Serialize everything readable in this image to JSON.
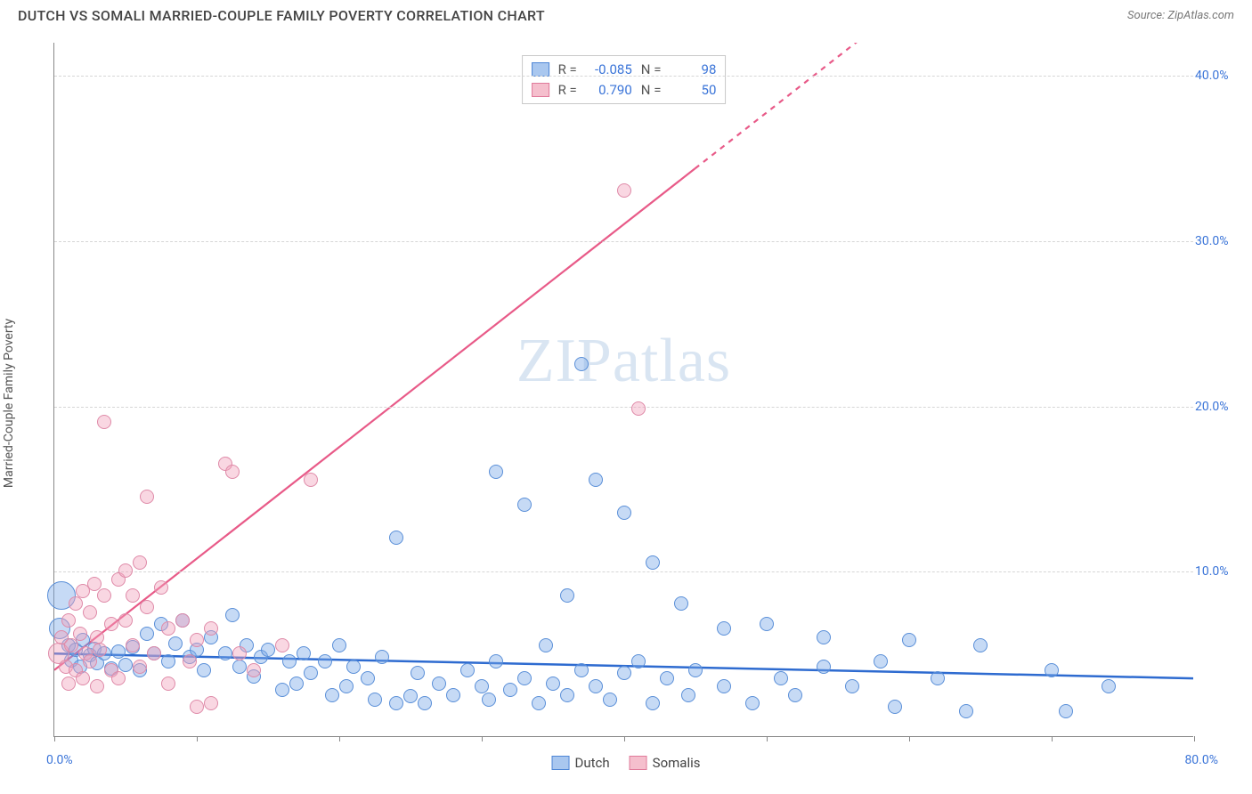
{
  "header": {
    "title": "DUTCH VS SOMALI MARRIED-COUPLE FAMILY POVERTY CORRELATION CHART",
    "source": "Source: ZipAtlas.com"
  },
  "watermark": {
    "a": "ZIP",
    "b": "atlas"
  },
  "chart": {
    "type": "scatter",
    "y_axis_label": "Married-Couple Family Poverty",
    "xlim": [
      0,
      80
    ],
    "ylim": [
      0,
      42
    ],
    "x_min_label": "0.0%",
    "x_max_label": "80.0%",
    "y_ticks": [
      10.0,
      20.0,
      30.0,
      40.0
    ],
    "y_tick_labels": [
      "10.0%",
      "20.0%",
      "30.0%",
      "40.0%"
    ],
    "x_tick_marks": [
      0,
      10,
      20,
      30,
      40,
      50,
      60,
      70,
      80
    ],
    "background_color": "#ffffff",
    "grid_color": "#d6d6d6",
    "axis_color": "#888888",
    "bottom_legend": [
      {
        "label": "Dutch",
        "fill": "#a9c7ef",
        "stroke": "#4e86d6"
      },
      {
        "label": "Somalis",
        "fill": "#f5bfcd",
        "stroke": "#e07a9a"
      }
    ],
    "stats": {
      "rows": [
        {
          "fill": "#a9c7ef",
          "stroke": "#4e86d6",
          "R": "-0.085",
          "N": "98"
        },
        {
          "fill": "#f5bfcd",
          "stroke": "#e07a9a",
          "R": "0.790",
          "N": "50"
        }
      ],
      "label_R": "R =",
      "label_N": "N ="
    },
    "series": [
      {
        "name": "Dutch",
        "point_fill": "rgba(120,168,230,0.42)",
        "point_stroke": "#5a8fd8",
        "default_radius": 8,
        "trend": {
          "color": "#2e6bd0",
          "width": 2.5,
          "dash_after_x": null,
          "y_at_x0": 5.0,
          "y_at_xmax": 3.5
        },
        "points": [
          {
            "x": 0.5,
            "y": 8.5,
            "r": 16
          },
          {
            "x": 0.4,
            "y": 6.5,
            "r": 12
          },
          {
            "x": 1.0,
            "y": 5.5
          },
          {
            "x": 1.2,
            "y": 4.6
          },
          {
            "x": 1.5,
            "y": 5.2
          },
          {
            "x": 1.8,
            "y": 4.2
          },
          {
            "x": 2.0,
            "y": 5.8
          },
          {
            "x": 2.5,
            "y": 4.9
          },
          {
            "x": 2.8,
            "y": 5.3
          },
          {
            "x": 3.0,
            "y": 4.4
          },
          {
            "x": 3.5,
            "y": 5.0
          },
          {
            "x": 4.0,
            "y": 4.1
          },
          {
            "x": 4.5,
            "y": 5.1
          },
          {
            "x": 5.0,
            "y": 4.3
          },
          {
            "x": 5.5,
            "y": 5.4
          },
          {
            "x": 6.0,
            "y": 4.0
          },
          {
            "x": 6.5,
            "y": 6.2
          },
          {
            "x": 7.0,
            "y": 5.0
          },
          {
            "x": 7.5,
            "y": 6.8
          },
          {
            "x": 8.0,
            "y": 4.5
          },
          {
            "x": 8.5,
            "y": 5.6
          },
          {
            "x": 9.0,
            "y": 7.0
          },
          {
            "x": 9.5,
            "y": 4.8
          },
          {
            "x": 10.0,
            "y": 5.2
          },
          {
            "x": 10.5,
            "y": 4.0
          },
          {
            "x": 11.0,
            "y": 6.0
          },
          {
            "x": 12.0,
            "y": 5.0
          },
          {
            "x": 12.5,
            "y": 7.3
          },
          {
            "x": 13.0,
            "y": 4.2
          },
          {
            "x": 13.5,
            "y": 5.5
          },
          {
            "x": 14.0,
            "y": 3.6
          },
          {
            "x": 14.5,
            "y": 4.8
          },
          {
            "x": 15.0,
            "y": 5.2
          },
          {
            "x": 16.0,
            "y": 2.8
          },
          {
            "x": 16.5,
            "y": 4.5
          },
          {
            "x": 17.0,
            "y": 3.2
          },
          {
            "x": 17.5,
            "y": 5.0
          },
          {
            "x": 18.0,
            "y": 3.8
          },
          {
            "x": 19.0,
            "y": 4.5
          },
          {
            "x": 19.5,
            "y": 2.5
          },
          {
            "x": 20.0,
            "y": 5.5
          },
          {
            "x": 20.5,
            "y": 3.0
          },
          {
            "x": 21.0,
            "y": 4.2
          },
          {
            "x": 22.0,
            "y": 3.5
          },
          {
            "x": 22.5,
            "y": 2.2
          },
          {
            "x": 23.0,
            "y": 4.8
          },
          {
            "x": 24.0,
            "y": 2.0
          },
          {
            "x": 24.0,
            "y": 12.0
          },
          {
            "x": 25.0,
            "y": 2.4
          },
          {
            "x": 25.5,
            "y": 3.8
          },
          {
            "x": 26.0,
            "y": 2.0
          },
          {
            "x": 27.0,
            "y": 3.2
          },
          {
            "x": 28.0,
            "y": 2.5
          },
          {
            "x": 29.0,
            "y": 4.0
          },
          {
            "x": 30.0,
            "y": 3.0
          },
          {
            "x": 30.5,
            "y": 2.2
          },
          {
            "x": 31.0,
            "y": 16.0
          },
          {
            "x": 31.0,
            "y": 4.5
          },
          {
            "x": 32.0,
            "y": 2.8
          },
          {
            "x": 33.0,
            "y": 3.5
          },
          {
            "x": 33.0,
            "y": 14.0
          },
          {
            "x": 34.0,
            "y": 2.0
          },
          {
            "x": 34.5,
            "y": 5.5
          },
          {
            "x": 35.0,
            "y": 3.2
          },
          {
            "x": 36.0,
            "y": 8.5
          },
          {
            "x": 36.0,
            "y": 2.5
          },
          {
            "x": 37.0,
            "y": 4.0
          },
          {
            "x": 37.0,
            "y": 22.5
          },
          {
            "x": 38.0,
            "y": 3.0
          },
          {
            "x": 38.0,
            "y": 15.5
          },
          {
            "x": 39.0,
            "y": 2.2
          },
          {
            "x": 40.0,
            "y": 3.8
          },
          {
            "x": 40.0,
            "y": 13.5
          },
          {
            "x": 41.0,
            "y": 4.5
          },
          {
            "x": 42.0,
            "y": 2.0
          },
          {
            "x": 42.0,
            "y": 10.5
          },
          {
            "x": 43.0,
            "y": 3.5
          },
          {
            "x": 44.0,
            "y": 8.0
          },
          {
            "x": 44.5,
            "y": 2.5
          },
          {
            "x": 45.0,
            "y": 4.0
          },
          {
            "x": 47.0,
            "y": 3.0
          },
          {
            "x": 47.0,
            "y": 6.5
          },
          {
            "x": 49.0,
            "y": 2.0
          },
          {
            "x": 50.0,
            "y": 6.8
          },
          {
            "x": 51.0,
            "y": 3.5
          },
          {
            "x": 52.0,
            "y": 2.5
          },
          {
            "x": 54.0,
            "y": 4.2
          },
          {
            "x": 54.0,
            "y": 6.0
          },
          {
            "x": 56.0,
            "y": 3.0
          },
          {
            "x": 58.0,
            "y": 4.5
          },
          {
            "x": 59.0,
            "y": 1.8
          },
          {
            "x": 60.0,
            "y": 5.8
          },
          {
            "x": 62.0,
            "y": 3.5
          },
          {
            "x": 64.0,
            "y": 1.5
          },
          {
            "x": 65.0,
            "y": 5.5
          },
          {
            "x": 70.0,
            "y": 4.0
          },
          {
            "x": 71.0,
            "y": 1.5
          },
          {
            "x": 74.0,
            "y": 3.0
          }
        ]
      },
      {
        "name": "Somalis",
        "point_fill": "rgba(240,160,185,0.42)",
        "point_stroke": "#df8aa8",
        "default_radius": 8,
        "trend": {
          "color": "#e85a88",
          "width": 2.2,
          "dash_after_x": 45,
          "y_at_x0": 4.0,
          "y_at_xmax": 58.0
        },
        "points": [
          {
            "x": 0.3,
            "y": 5.0,
            "r": 12
          },
          {
            "x": 0.5,
            "y": 6.0
          },
          {
            "x": 0.8,
            "y": 4.2
          },
          {
            "x": 1.0,
            "y": 7.0
          },
          {
            "x": 1.0,
            "y": 3.2
          },
          {
            "x": 1.2,
            "y": 5.5
          },
          {
            "x": 1.5,
            "y": 8.0
          },
          {
            "x": 1.5,
            "y": 4.0
          },
          {
            "x": 1.8,
            "y": 6.2
          },
          {
            "x": 2.0,
            "y": 8.8
          },
          {
            "x": 2.0,
            "y": 3.5
          },
          {
            "x": 2.2,
            "y": 5.0
          },
          {
            "x": 2.5,
            "y": 7.5
          },
          {
            "x": 2.5,
            "y": 4.5
          },
          {
            "x": 2.8,
            "y": 9.2
          },
          {
            "x": 3.0,
            "y": 6.0
          },
          {
            "x": 3.0,
            "y": 3.0
          },
          {
            "x": 3.2,
            "y": 5.2
          },
          {
            "x": 3.5,
            "y": 8.5
          },
          {
            "x": 3.5,
            "y": 19.0
          },
          {
            "x": 4.0,
            "y": 6.8
          },
          {
            "x": 4.0,
            "y": 4.0
          },
          {
            "x": 4.5,
            "y": 9.5
          },
          {
            "x": 4.5,
            "y": 3.5
          },
          {
            "x": 5.0,
            "y": 7.0
          },
          {
            "x": 5.0,
            "y": 10.0
          },
          {
            "x": 5.5,
            "y": 5.5
          },
          {
            "x": 5.5,
            "y": 8.5
          },
          {
            "x": 6.0,
            "y": 10.5
          },
          {
            "x": 6.0,
            "y": 4.2
          },
          {
            "x": 6.5,
            "y": 7.8
          },
          {
            "x": 6.5,
            "y": 14.5
          },
          {
            "x": 7.0,
            "y": 5.0
          },
          {
            "x": 7.5,
            "y": 9.0
          },
          {
            "x": 8.0,
            "y": 6.5
          },
          {
            "x": 8.0,
            "y": 3.2
          },
          {
            "x": 9.0,
            "y": 7.0
          },
          {
            "x": 9.5,
            "y": 4.5
          },
          {
            "x": 10.0,
            "y": 5.8
          },
          {
            "x": 10.0,
            "y": 1.8
          },
          {
            "x": 11.0,
            "y": 6.5
          },
          {
            "x": 12.0,
            "y": 16.5
          },
          {
            "x": 12.5,
            "y": 16.0
          },
          {
            "x": 13.0,
            "y": 5.0
          },
          {
            "x": 14.0,
            "y": 4.0
          },
          {
            "x": 16.0,
            "y": 5.5
          },
          {
            "x": 18.0,
            "y": 15.5
          },
          {
            "x": 40.0,
            "y": 33.0
          },
          {
            "x": 41.0,
            "y": 19.8
          },
          {
            "x": 11.0,
            "y": 2.0
          }
        ]
      }
    ]
  }
}
